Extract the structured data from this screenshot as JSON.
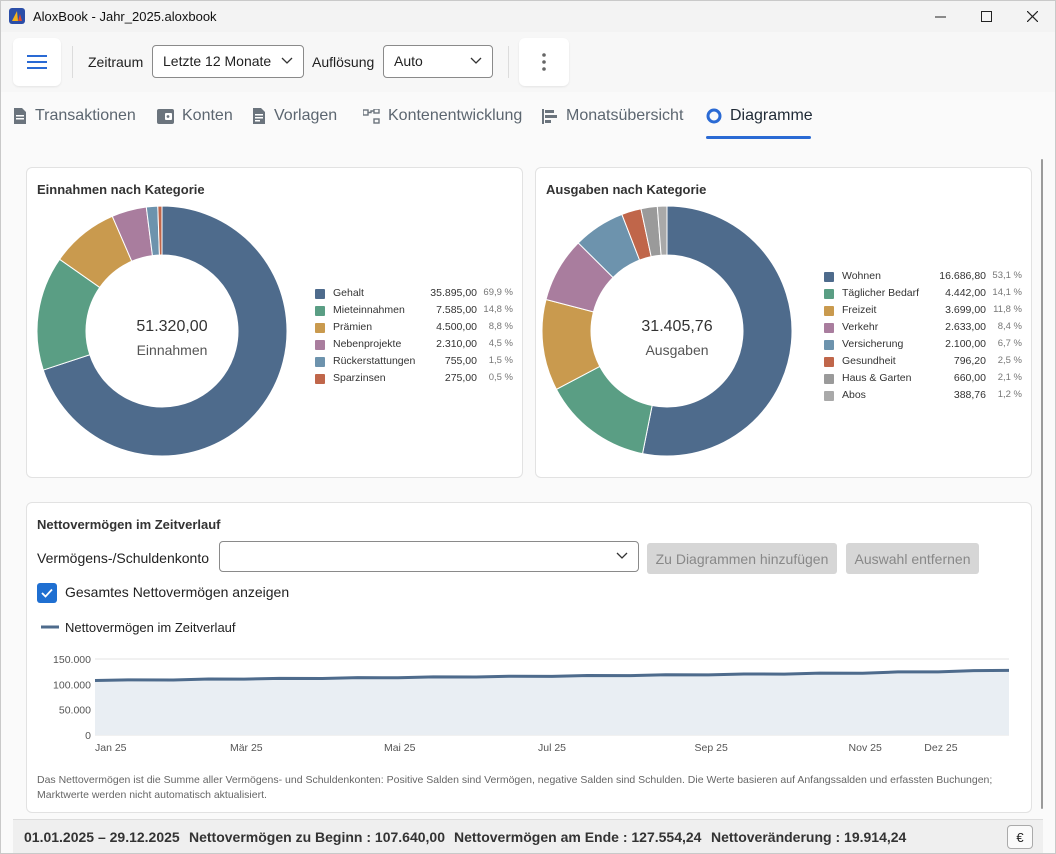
{
  "window": {
    "title": "AloxBook - Jahr_2025.aloxbook"
  },
  "toolbar": {
    "zeitraum_label": "Zeitraum",
    "zeitraum_value": "Letzte 12 Monate",
    "aufloesung_label": "Auflösung",
    "aufloesung_value": "Auto"
  },
  "tabs": [
    {
      "label": "Transaktionen"
    },
    {
      "label": "Konten"
    },
    {
      "label": "Vorlagen"
    },
    {
      "label": "Kontenentwicklung"
    },
    {
      "label": "Monatsübersicht"
    },
    {
      "label": "Diagramme"
    }
  ],
  "active_tab": "Diagramme",
  "income": {
    "title": "Einnahmen nach Kategorie",
    "total": "51.320,00",
    "total_label": "Einnahmen",
    "items": [
      {
        "name": "Gehalt",
        "value": "35.895,00",
        "pct": "69,9 %",
        "color": "#4e6b8c"
      },
      {
        "name": "Mieteinnahmen",
        "value": "7.585,00",
        "pct": "14,8 %",
        "color": "#5a9e84"
      },
      {
        "name": "Prämien",
        "value": "4.500,00",
        "pct": "8,8 %",
        "color": "#c99a4e"
      },
      {
        "name": "Nebenprojekte",
        "value": "2.310,00",
        "pct": "4,5 %",
        "color": "#a97d9e"
      },
      {
        "name": "Rückerstattungen",
        "value": "755,00",
        "pct": "1,5 %",
        "color": "#6d93ad"
      },
      {
        "name": "Sparzinsen",
        "value": "275,00",
        "pct": "0,5 %",
        "color": "#c0664a"
      }
    ]
  },
  "expenses": {
    "title": "Ausgaben nach Kategorie",
    "total": "31.405,76",
    "total_label": "Ausgaben",
    "items": [
      {
        "name": "Wohnen",
        "value": "16.686,80",
        "pct": "53,1 %",
        "color": "#4e6b8c"
      },
      {
        "name": "Täglicher Bedarf",
        "value": "4.442,00",
        "pct": "14,1 %",
        "color": "#5a9e84"
      },
      {
        "name": "Freizeit",
        "value": "3.699,00",
        "pct": "11,8 %",
        "color": "#c99a4e"
      },
      {
        "name": "Verkehr",
        "value": "2.633,00",
        "pct": "8,4 %",
        "color": "#a97d9e"
      },
      {
        "name": "Versicherung",
        "value": "2.100,00",
        "pct": "6,7 %",
        "color": "#6d93ad"
      },
      {
        "name": "Gesundheit",
        "value": "796,20",
        "pct": "2,5 %",
        "color": "#c0664a"
      },
      {
        "name": "Haus & Garten",
        "value": "660,00",
        "pct": "2,1 %",
        "color": "#9a9a9a"
      },
      {
        "name": "Abos",
        "value": "388,76",
        "pct": "1,2 %",
        "color": "#a9a9a9"
      }
    ]
  },
  "networth": {
    "title": "Nettovermögen im Zeitverlauf",
    "account_label": "Vermögens-/Schuldenkonto",
    "account_value": "",
    "add_button": "Zu Diagrammen hinzufügen",
    "remove_button": "Auswahl entfernen",
    "checkbox_label": "Gesamtes Nettovermögen anzeigen",
    "checkbox_checked": true,
    "footnote": "Das Nettovermögen ist die Summe aller Vermögens- und Schuldenkonten: Positive Salden sind Vermögen, negative Salden sind Schulden. Die Werte basieren auf Anfangssalden und erfassten Buchungen; Marktwerte werden nicht automatisch aktualisiert."
  },
  "chart_data": [
    {
      "type": "pie",
      "title": "Einnahmen nach Kategorie",
      "categories": [
        "Gehalt",
        "Mieteinnahmen",
        "Prämien",
        "Nebenprojekte",
        "Rückerstattungen",
        "Sparzinsen"
      ],
      "values": [
        35895,
        7585,
        4500,
        2310,
        755,
        275
      ],
      "legend": "right"
    },
    {
      "type": "pie",
      "title": "Ausgaben nach Kategorie",
      "categories": [
        "Wohnen",
        "Täglicher Bedarf",
        "Freizeit",
        "Verkehr",
        "Versicherung",
        "Gesundheit",
        "Haus & Garten",
        "Abos"
      ],
      "values": [
        16686.8,
        4442.0,
        3699.0,
        2633.0,
        2100.0,
        796.2,
        660.0,
        388.76
      ],
      "legend": "right"
    },
    {
      "type": "area",
      "title": "",
      "series": [
        {
          "name": "Nettovermögen im Zeitverlauf",
          "color": "#4e6b8c",
          "x": [
            "01.01.2025",
            "15.01.2025",
            "01.02.2025",
            "15.02.2025",
            "01.03.2025",
            "15.03.2025",
            "01.04.2025",
            "15.04.2025",
            "01.05.2025",
            "15.05.2025",
            "01.06.2025",
            "15.06.2025",
            "01.07.2025",
            "15.07.2025",
            "01.08.2025",
            "15.08.2025",
            "01.09.2025",
            "15.09.2025",
            "01.10.2025",
            "15.10.2025",
            "01.11.2025",
            "15.11.2025",
            "01.12.2025",
            "15.12.2025",
            "29.12.2025"
          ],
          "values": [
            107640,
            108800,
            108500,
            110500,
            110300,
            111800,
            111600,
            113200,
            113000,
            114600,
            114400,
            116000,
            115800,
            117500,
            117200,
            118900,
            118700,
            120400,
            120200,
            122000,
            121800,
            124500,
            124700,
            127000,
            127554
          ]
        }
      ],
      "x_ticks": [
        "Jan 25",
        "Mär 25",
        "Mai 25",
        "Jul 25",
        "Sep 25",
        "Nov 25",
        "Dez 25"
      ],
      "y_ticks": [
        "0",
        "50.000",
        "100.000",
        "150.000"
      ],
      "ylim": [
        0,
        150000
      ],
      "grid": true,
      "legend": "top-left"
    }
  ],
  "status": {
    "range": "01.01.2025 – 29.12.2025",
    "start_label": "Nettovermögen zu Beginn",
    "start_value": "107.640,00",
    "end_label": "Nettovermögen am Ende",
    "end_value": "127.554,24",
    "change_label": "Nettoveränderung",
    "change_value": "19.914,24",
    "currency": "€"
  }
}
